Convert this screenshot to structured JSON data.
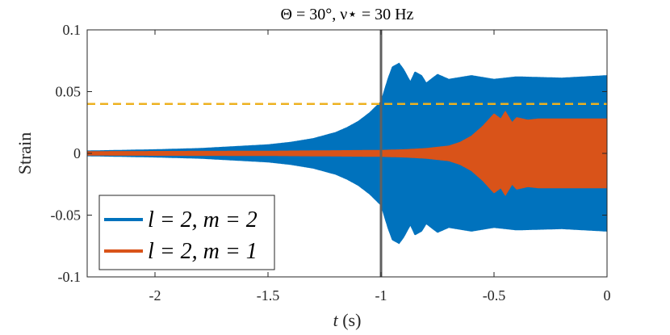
{
  "chart_data": {
    "type": "line",
    "title": "Θ = 30°,   ν⋆ = 30 Hz",
    "xlabel": "t (s)",
    "ylabel": "Strain",
    "xlim": [
      -2.3,
      0
    ],
    "ylim": [
      -0.1,
      0.1
    ],
    "xticks": [
      -2,
      -1.5,
      -1,
      -0.5,
      0
    ],
    "xtick_labels": [
      "-2",
      "-1.5",
      "-1",
      "-0.5",
      "0"
    ],
    "yticks": [
      -0.1,
      -0.05,
      0,
      0.05,
      0.1
    ],
    "ytick_labels": [
      "-0.1",
      "-0.05",
      "0",
      "0.05",
      "0.1"
    ],
    "grid": false,
    "legend_position": "bottom-left",
    "series": [
      {
        "name": "l = 2, m = 2",
        "color": "#0072BD",
        "style": "oscillating envelope (filled band)",
        "envelope": {
          "t": [
            -2.3,
            -2.0,
            -1.8,
            -1.6,
            -1.5,
            -1.4,
            -1.3,
            -1.2,
            -1.15,
            -1.1,
            -1.05,
            -1.0,
            -0.97,
            -0.95,
            -0.92,
            -0.9,
            -0.87,
            -0.85,
            -0.82,
            -0.8,
            -0.75,
            -0.7,
            -0.6,
            -0.5,
            -0.4,
            -0.2,
            0.0
          ],
          "upper": [
            0.002,
            0.003,
            0.004,
            0.006,
            0.007,
            0.009,
            0.012,
            0.017,
            0.021,
            0.026,
            0.033,
            0.042,
            0.06,
            0.07,
            0.073,
            0.068,
            0.058,
            0.066,
            0.063,
            0.057,
            0.064,
            0.06,
            0.063,
            0.06,
            0.062,
            0.061,
            0.063
          ],
          "lower": [
            -0.002,
            -0.003,
            -0.004,
            -0.006,
            -0.007,
            -0.009,
            -0.012,
            -0.017,
            -0.021,
            -0.026,
            -0.033,
            -0.042,
            -0.06,
            -0.07,
            -0.073,
            -0.068,
            -0.058,
            -0.066,
            -0.063,
            -0.057,
            -0.064,
            -0.06,
            -0.063,
            -0.06,
            -0.062,
            -0.061,
            -0.063
          ]
        }
      },
      {
        "name": "l = 2, m = 1",
        "color": "#D95319",
        "style": "oscillating envelope (filled band)",
        "envelope": {
          "t": [
            -2.3,
            -1.5,
            -1.0,
            -0.9,
            -0.8,
            -0.7,
            -0.65,
            -0.6,
            -0.55,
            -0.5,
            -0.47,
            -0.45,
            -0.42,
            -0.4,
            -0.35,
            -0.3,
            -0.2,
            0.0
          ],
          "upper": [
            0.0015,
            0.0018,
            0.0025,
            0.003,
            0.004,
            0.006,
            0.009,
            0.014,
            0.022,
            0.032,
            0.028,
            0.034,
            0.025,
            0.029,
            0.027,
            0.028,
            0.028,
            0.028
          ],
          "lower": [
            -0.0015,
            -0.0018,
            -0.0025,
            -0.003,
            -0.004,
            -0.006,
            -0.009,
            -0.014,
            -0.022,
            -0.032,
            -0.028,
            -0.034,
            -0.025,
            -0.029,
            -0.027,
            -0.028,
            -0.028,
            -0.028
          ]
        }
      }
    ],
    "reference_lines": [
      {
        "type": "horizontal",
        "value": 0.04,
        "color": "#EDB120",
        "style": "dashed"
      },
      {
        "type": "vertical",
        "value": -1.0,
        "color": "#606060",
        "style": "solid"
      }
    ]
  }
}
